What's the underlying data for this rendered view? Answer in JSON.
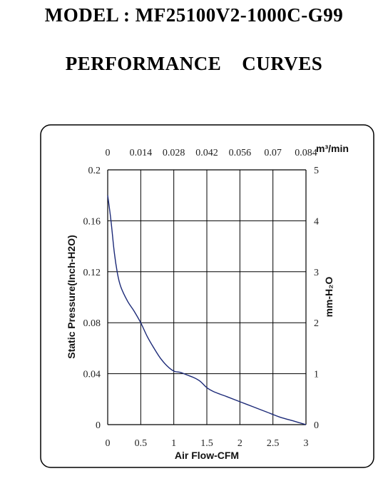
{
  "header": {
    "model_title": "MODEL : MF25100V2-1000C-G99",
    "section_title": "PERFORMANCE    CURVES"
  },
  "chart_data": {
    "type": "line",
    "xlabel": "Air Flow-CFM",
    "ylabel": "Static Pressure(Inch-H2O)",
    "top_axis_label": "m³/min",
    "right_axis_label": "mm-H₂O",
    "xlim": [
      0,
      3
    ],
    "ylim": [
      0,
      0.2
    ],
    "x_ticks": [
      "0",
      "0.5",
      "1",
      "1.5",
      "2",
      "2.5",
      "3"
    ],
    "y_ticks": [
      "0",
      "0.04",
      "0.08",
      "0.12",
      "0.16",
      "0.2"
    ],
    "top_ticks": [
      "0",
      "0.014",
      "0.028",
      "0.042",
      "0.056",
      "0.07",
      "0.084"
    ],
    "right_ticks": [
      "0",
      "1",
      "2",
      "3",
      "4",
      "5"
    ],
    "grid": true,
    "series": [
      {
        "color": "#1c2a78",
        "x": [
          0,
          0.05,
          0.1,
          0.15,
          0.2,
          0.3,
          0.4,
          0.5,
          0.6,
          0.7,
          0.8,
          0.9,
          1.0,
          1.1,
          1.2,
          1.3,
          1.4,
          1.5,
          1.6,
          1.8,
          2.0,
          2.2,
          2.4,
          2.6,
          2.8,
          3.0
        ],
        "y": [
          0.18,
          0.16,
          0.135,
          0.118,
          0.108,
          0.097,
          0.089,
          0.08,
          0.069,
          0.06,
          0.052,
          0.046,
          0.042,
          0.041,
          0.039,
          0.037,
          0.034,
          0.029,
          0.026,
          0.022,
          0.018,
          0.014,
          0.01,
          0.006,
          0.003,
          0
        ]
      }
    ]
  },
  "colors": {
    "curve": "#1c2a78",
    "grid": "#000000",
    "frame": "#000000"
  }
}
